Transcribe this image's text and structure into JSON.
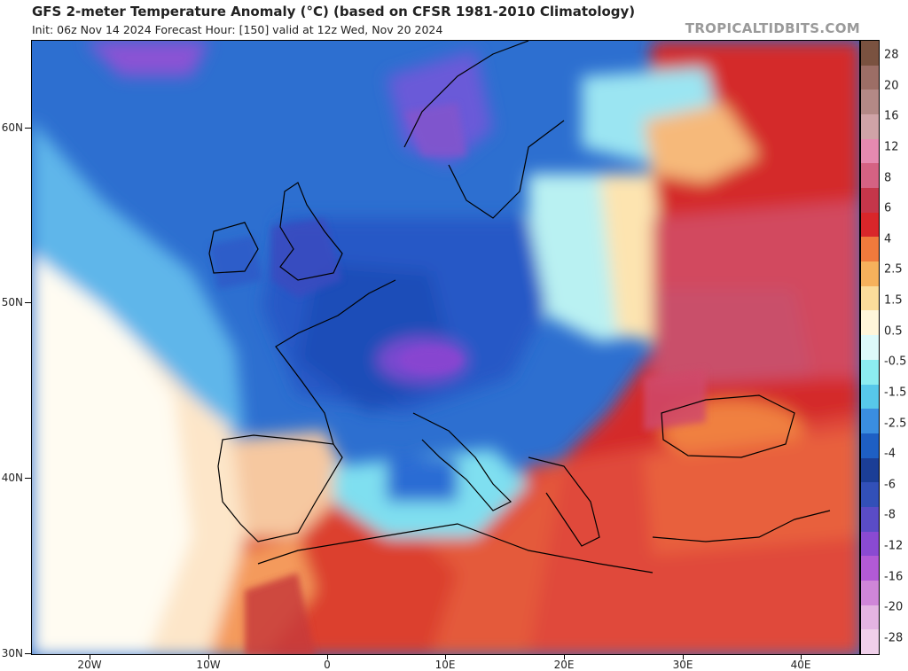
{
  "header": {
    "title": "GFS 2-meter Temperature Anomaly (°C) (based on CFSR 1981-2010 Climatology)",
    "subtitle": "Init: 06z Nov 14 2024   Forecast Hour: [150]   valid at 12z Wed, Nov 20 2024",
    "credit": "TROPICALTIDBITS.COM"
  },
  "axes": {
    "lat_labels": [
      "60N",
      "50N",
      "40N",
      "30N"
    ],
    "lon_labels": [
      "20W",
      "10W",
      "0",
      "10E",
      "20E",
      "30E",
      "40E"
    ]
  },
  "colorbar": {
    "labels": [
      "28",
      "20",
      "16",
      "12",
      "8",
      "6",
      "4",
      "2.5",
      "1.5",
      "0.5",
      "-0.5",
      "-1.5",
      "-2.5",
      "-4",
      "-6",
      "-8",
      "-12",
      "-16",
      "-20",
      "-28"
    ],
    "colors": [
      "#7a5240",
      "#9c6e66",
      "#b38986",
      "#cfa3a7",
      "#e58ab0",
      "#d46283",
      "#c5364a",
      "#d9262a",
      "#f07a3c",
      "#f6b15c",
      "#fbdc9b",
      "#fff6da",
      "#ddfafa",
      "#8cecf0",
      "#57c8ea",
      "#3a8ee0",
      "#1e5fc4",
      "#1b3e96",
      "#3250b8",
      "#5a4cc6",
      "#8a4ad2",
      "#b25ad6",
      "#cf86d8",
      "#e4b4e2",
      "#f0d0ea"
    ]
  }
}
